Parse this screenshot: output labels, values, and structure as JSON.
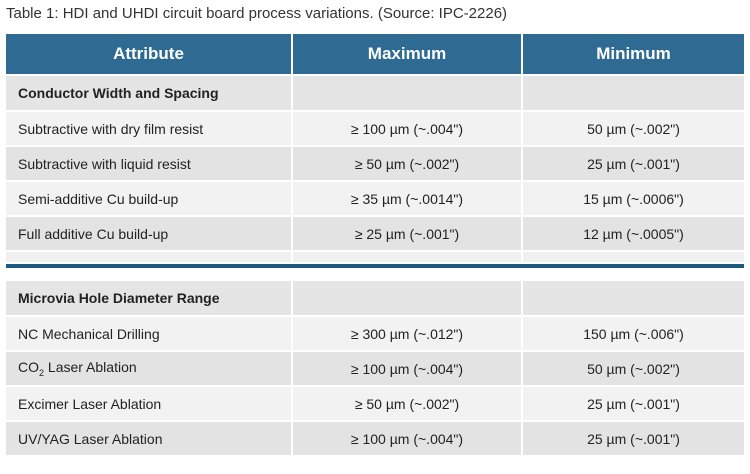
{
  "caption": "Table 1: HDI and UHDI circuit board process variations. (Source: IPC-2226)",
  "headers": [
    "Attribute",
    "Maximum",
    "Minimum"
  ],
  "sections": [
    {
      "title": "Conductor Width and Spacing",
      "rows": [
        {
          "attribute": "Subtractive with dry film resist",
          "maximum": "≥ 100 µm (~.004\")",
          "minimum": "50 µm (~.002\")"
        },
        {
          "attribute": "Subtractive with liquid resist",
          "maximum": "≥ 50 µm (~.002\")",
          "minimum": "25 µm (~.001\")"
        },
        {
          "attribute": "Semi-additive Cu build-up",
          "maximum": "≥ 35 µm (~.0014\")",
          "minimum": "15 µm (~.0006\")"
        },
        {
          "attribute": "Full additive Cu build-up",
          "maximum": "≥ 25 µm (~.001\")",
          "minimum": "12 µm (~.0005\")"
        }
      ]
    },
    {
      "title": "Microvia Hole Diameter Range",
      "rows": [
        {
          "attribute": "NC Mechanical Drilling",
          "maximum": "≥ 300 µm (~.012\")",
          "minimum": "150 µm (~.006\")"
        },
        {
          "attribute_prefix": "CO",
          "attribute_sub": "2",
          "attribute_suffix": " Laser Ablation",
          "maximum": "≥ 100 µm (~.004\")",
          "minimum": "50 µm (~.002\")"
        },
        {
          "attribute": "Excimer Laser Ablation",
          "maximum": "≥ 50 µm (~.002\")",
          "minimum": "25 µm (~.001\")"
        },
        {
          "attribute": "UV/YAG Laser Ablation",
          "maximum": "≥ 100 µm (~.004\")",
          "minimum": "25 µm (~.001\")"
        }
      ]
    }
  ],
  "colors": {
    "header": "#2f6a93",
    "divider": "#1d5a82",
    "row_light": "#f2f2f2",
    "row_dark": "#e3e3e3"
  }
}
